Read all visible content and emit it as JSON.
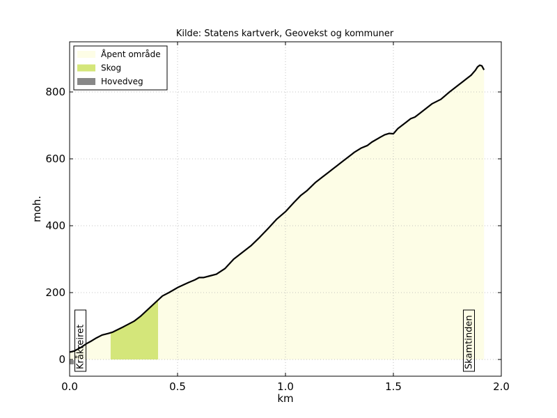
{
  "chart_data": {
    "type": "area",
    "title": "Kilde: Statens kartverk, Geovekst og kommuner",
    "xlabel": "km",
    "ylabel": "moh.",
    "xlim": [
      0.0,
      2.0
    ],
    "ylim": [
      -50,
      950
    ],
    "grid": true,
    "legend_placement": "top-left",
    "x_ticks": [
      0.0,
      0.5,
      1.0,
      1.5,
      2.0
    ],
    "x_tick_labels": [
      "0.0",
      "0.5",
      "1.0",
      "1.5",
      "2.0"
    ],
    "y_ticks": [
      0,
      200,
      400,
      600,
      800
    ],
    "y_tick_labels": [
      "0",
      "200",
      "400",
      "600",
      "800"
    ],
    "legend": [
      {
        "label": "Åpent område",
        "color": "#fdfde6"
      },
      {
        "label": "Skog",
        "color": "#d4e67a"
      },
      {
        "label": "Hovedveg",
        "color": "#888888"
      }
    ],
    "profile": {
      "x": [
        0.0,
        0.02,
        0.05,
        0.08,
        0.1,
        0.12,
        0.15,
        0.18,
        0.2,
        0.25,
        0.3,
        0.33,
        0.36,
        0.4,
        0.43,
        0.46,
        0.5,
        0.55,
        0.58,
        0.6,
        0.62,
        0.65,
        0.68,
        0.72,
        0.76,
        0.8,
        0.84,
        0.88,
        0.92,
        0.96,
        1.0,
        1.04,
        1.07,
        1.1,
        1.14,
        1.17,
        1.2,
        1.22,
        1.24,
        1.26,
        1.28,
        1.3,
        1.32,
        1.35,
        1.38,
        1.4,
        1.44,
        1.46,
        1.48,
        1.5,
        1.52,
        1.54,
        1.56,
        1.58,
        1.6,
        1.62,
        1.65,
        1.68,
        1.72,
        1.76,
        1.8,
        1.82,
        1.84,
        1.86,
        1.88,
        1.89,
        1.9,
        1.91,
        1.92
      ],
      "y": [
        22,
        25,
        35,
        48,
        55,
        63,
        73,
        78,
        82,
        98,
        115,
        130,
        148,
        172,
        190,
        200,
        215,
        230,
        238,
        245,
        245,
        250,
        255,
        272,
        300,
        320,
        340,
        365,
        392,
        420,
        442,
        470,
        490,
        505,
        530,
        545,
        560,
        570,
        580,
        590,
        600,
        610,
        620,
        632,
        640,
        650,
        665,
        672,
        676,
        675,
        690,
        700,
        710,
        720,
        725,
        735,
        750,
        765,
        778,
        800,
        820,
        830,
        840,
        850,
        865,
        875,
        880,
        878,
        866
      ]
    },
    "landcover": [
      {
        "type": "Åpent område",
        "x_start": 0.0,
        "x_end": 0.19
      },
      {
        "type": "Skog",
        "x_start": 0.19,
        "x_end": 0.41
      },
      {
        "type": "Åpent område",
        "x_start": 0.41,
        "x_end": 1.92
      }
    ],
    "road_segments": [
      {
        "type": "Hovedveg",
        "x_start": 0.0,
        "x_end": 0.02
      }
    ],
    "annotations": [
      {
        "text": "Kråkreiret",
        "x": 0.05
      },
      {
        "text": "Skamtinden",
        "x": 1.85
      }
    ]
  }
}
